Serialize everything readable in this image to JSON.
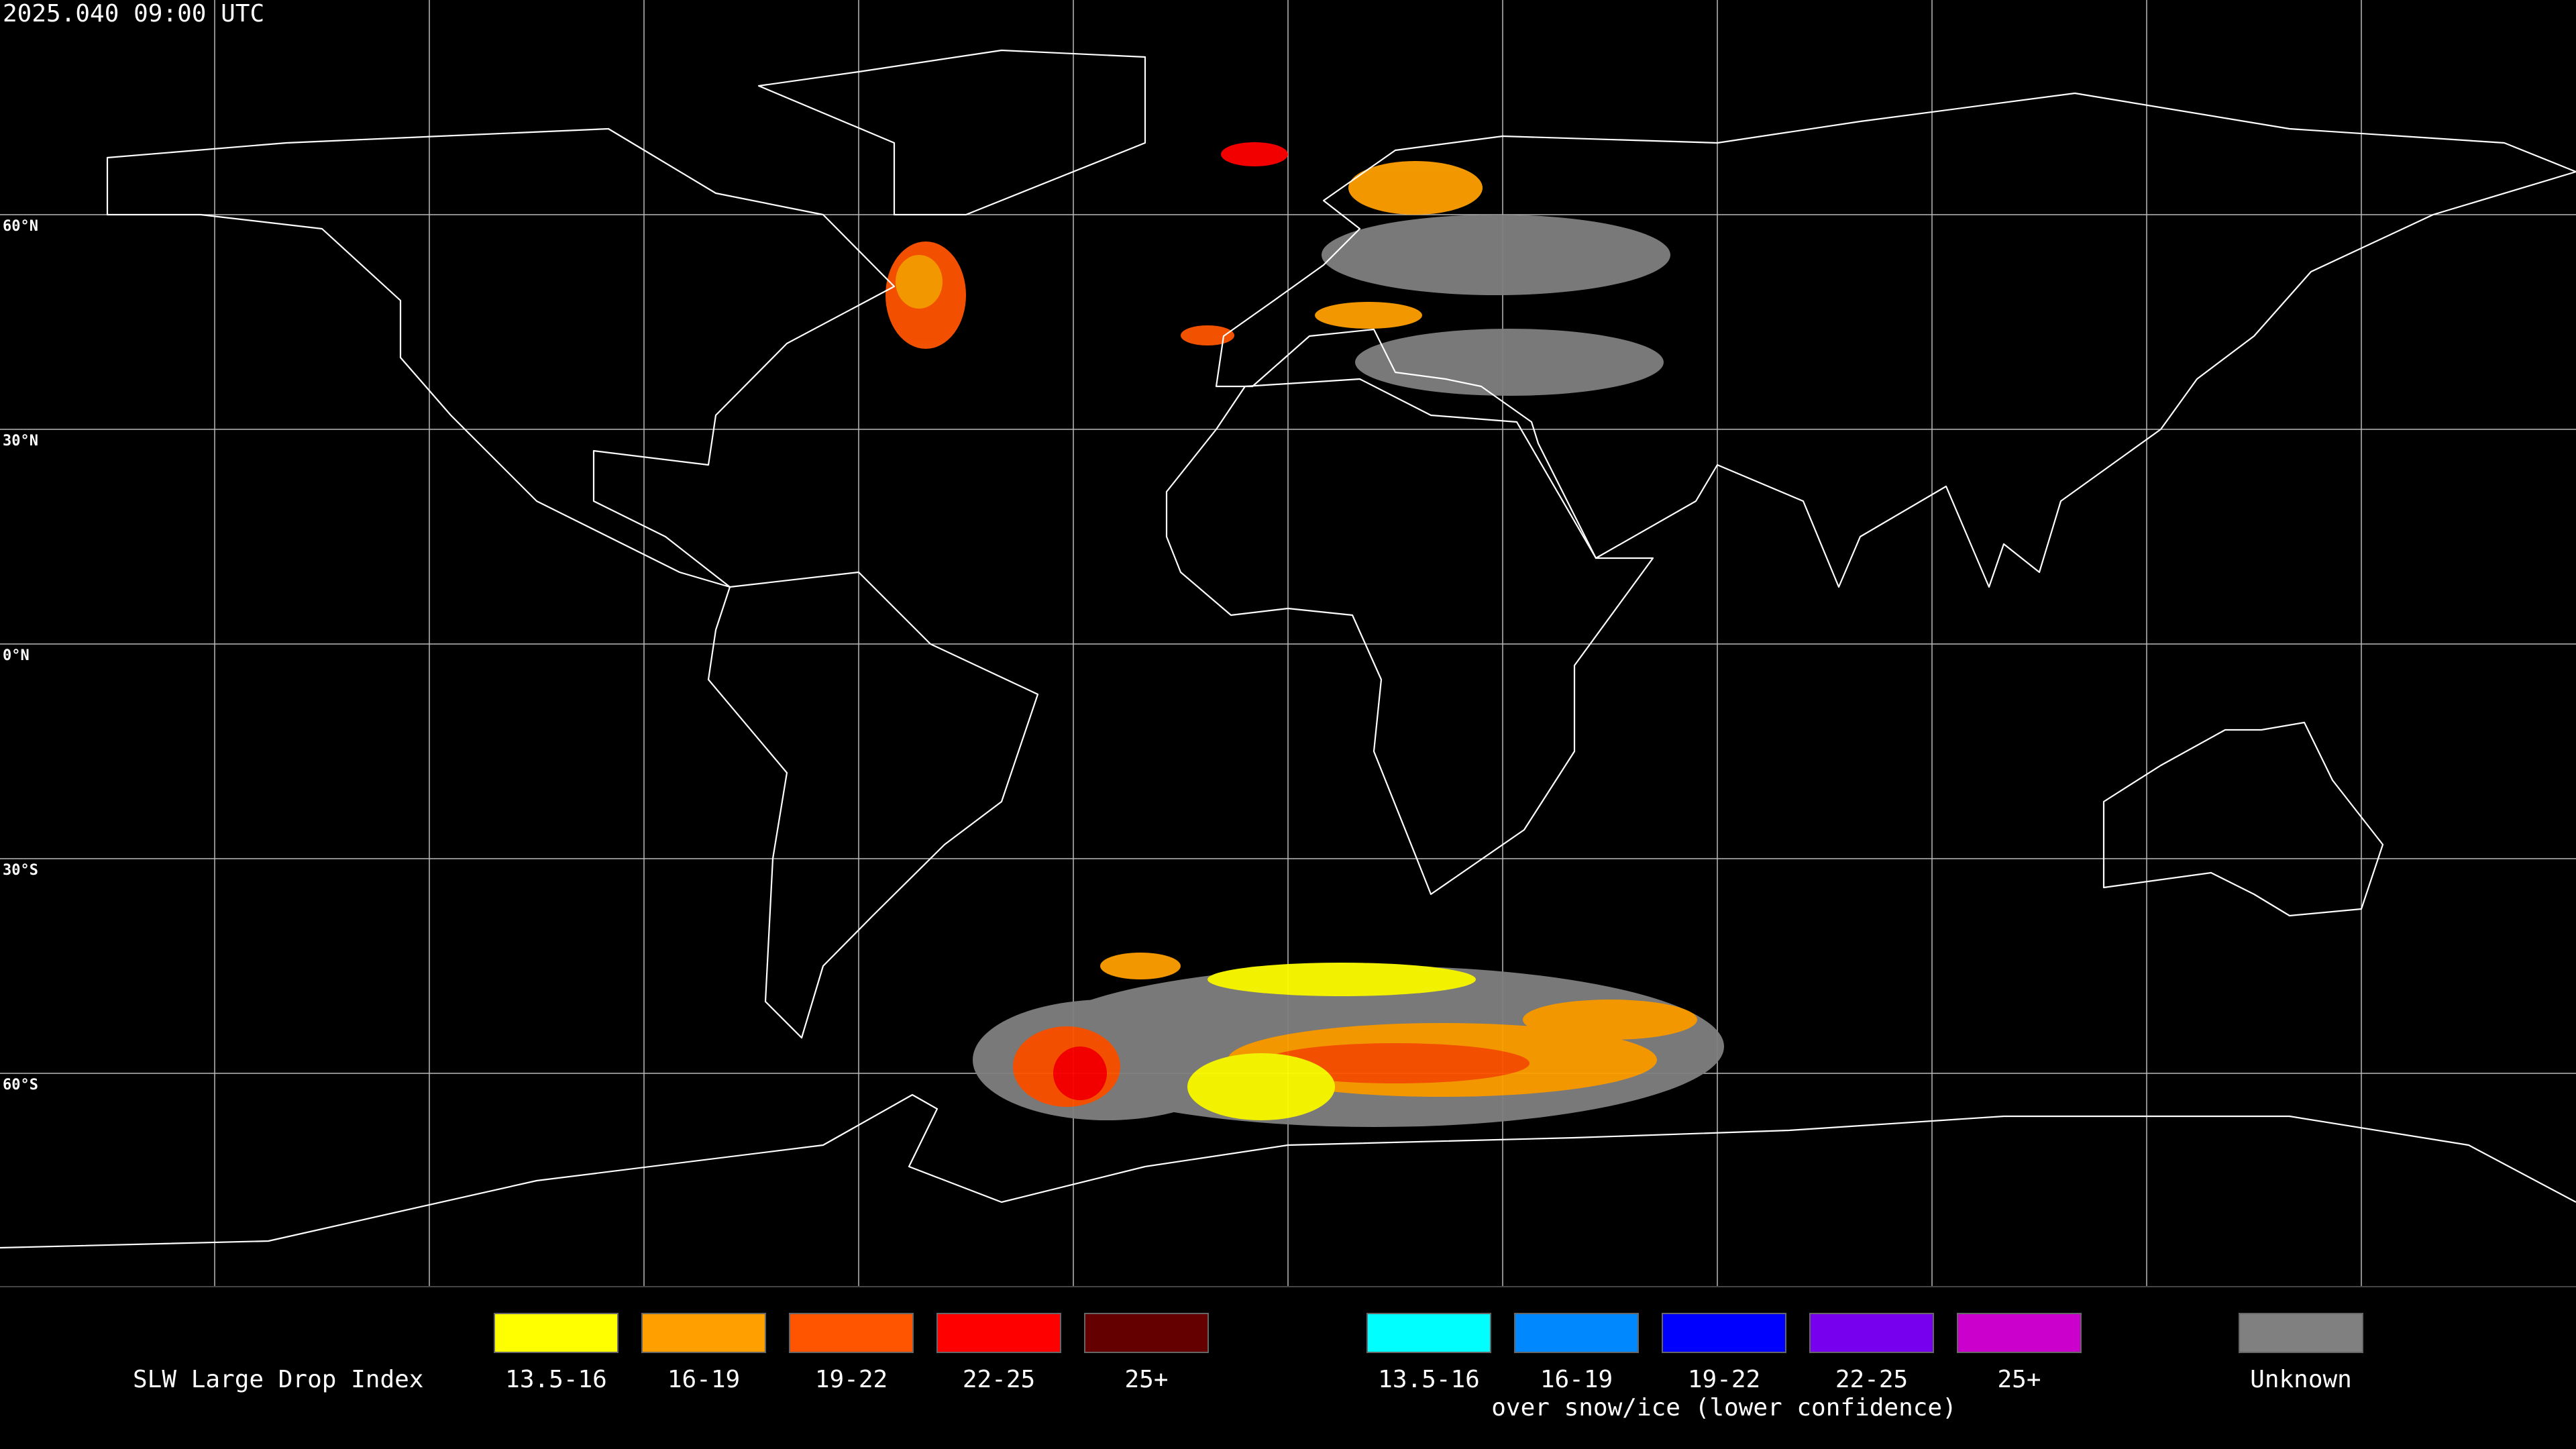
{
  "header": {
    "timestamp": "2025.040 09:00 UTC"
  },
  "map": {
    "lat_labels": [
      "60°N",
      "30°N",
      "0°N",
      "30°S",
      "60°S"
    ]
  },
  "legend": {
    "title": "SLW Large Drop Index",
    "groups": [
      {
        "items": [
          {
            "label": "13.5-16",
            "color": "#ffff00"
          },
          {
            "label": "16-19",
            "color": "#ffa000"
          },
          {
            "label": "19-22",
            "color": "#ff5500"
          },
          {
            "label": "22-25",
            "color": "#ff0000"
          },
          {
            "label": "25+",
            "color": "#640000"
          }
        ]
      },
      {
        "items": [
          {
            "label": "13.5-16",
            "color": "#00ffff"
          },
          {
            "label": "16-19",
            "color": "#0088ff"
          },
          {
            "label": "19-22",
            "color": "#0000ff"
          },
          {
            "label": "22-25",
            "color": "#7700ee"
          },
          {
            "label": "25+",
            "color": "#cc00cc"
          }
        ],
        "note": "over snow/ice (lower confidence)"
      },
      {
        "items": [
          {
            "label": "Unknown",
            "color": "#808080"
          }
        ]
      }
    ]
  }
}
